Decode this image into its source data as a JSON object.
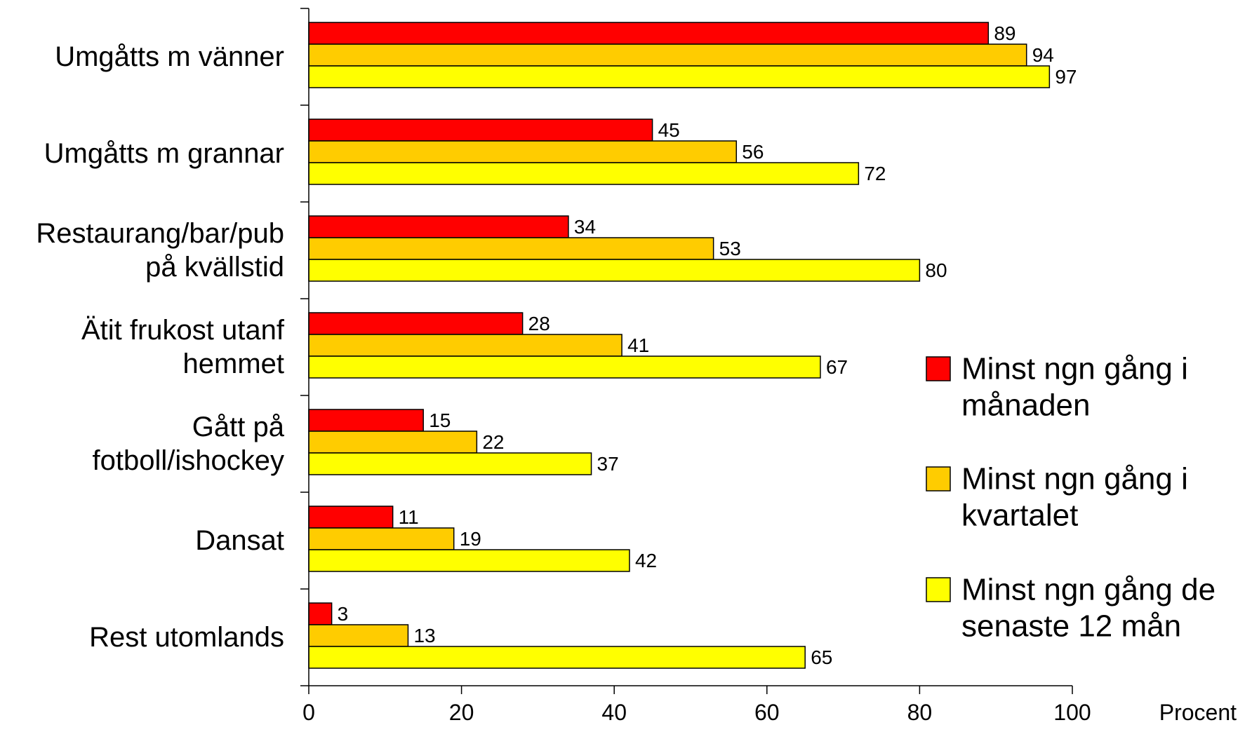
{
  "chart_data": {
    "type": "bar",
    "orientation": "horizontal",
    "categories": [
      [
        "Umgåtts m vänner"
      ],
      [
        "Umgåtts m grannar"
      ],
      [
        "Restaurang/bar/pub",
        "på kvällstid"
      ],
      [
        "Ätit frukost utanf",
        "hemmet"
      ],
      [
        "Gått på",
        "fotboll/ishockey"
      ],
      [
        "Dansat"
      ],
      [
        "Rest utomlands"
      ]
    ],
    "series": [
      {
        "name": [
          "Minst ngn gång i",
          "månaden"
        ],
        "color": "#ff0000",
        "values": [
          89,
          45,
          34,
          28,
          15,
          11,
          3
        ]
      },
      {
        "name": [
          "Minst ngn gång i",
          "kvartalet"
        ],
        "color": "#ffcc00",
        "values": [
          94,
          56,
          53,
          41,
          22,
          19,
          13
        ]
      },
      {
        "name": [
          "Minst ngn gång de",
          "senaste 12 mån"
        ],
        "color": "#ffff00",
        "values": [
          97,
          72,
          80,
          67,
          37,
          42,
          65
        ]
      }
    ],
    "xlim": [
      0,
      100
    ],
    "xticks": [
      0,
      20,
      40,
      60,
      80,
      100
    ],
    "xunit": "Procent",
    "grid": false,
    "legend_position": "right"
  }
}
